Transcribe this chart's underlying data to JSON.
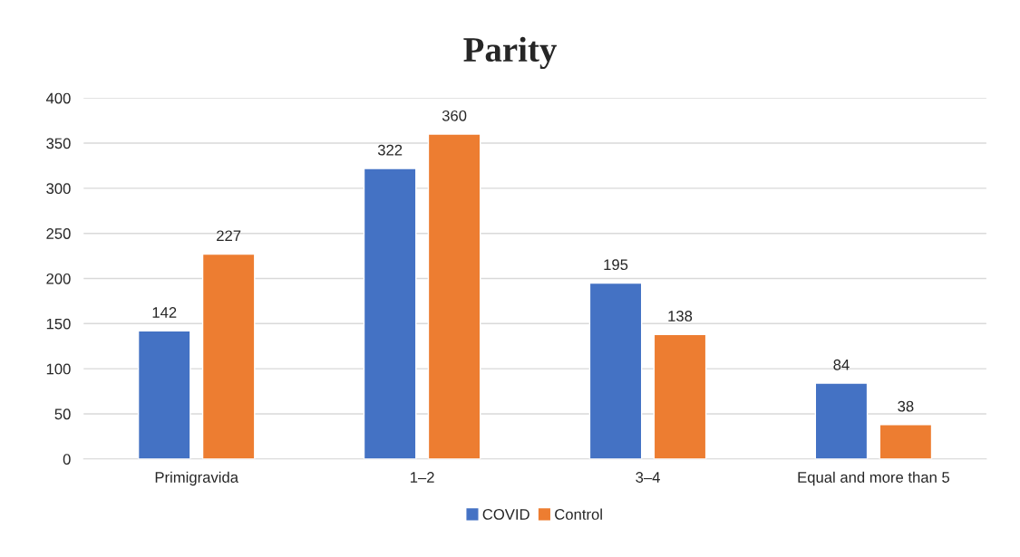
{
  "chart_data": {
    "type": "bar",
    "title": "Parity",
    "categories": [
      "Primigravida",
      "1–2",
      "3–4",
      "Equal and more than 5"
    ],
    "series": [
      {
        "name": "COVID",
        "color": "#4472c4",
        "values": [
          142,
          322,
          195,
          84
        ]
      },
      {
        "name": "Control",
        "color": "#ed7d31",
        "values": [
          227,
          360,
          138,
          38
        ]
      }
    ],
    "ylim": [
      0,
      400
    ],
    "yticks": [
      0,
      50,
      100,
      150,
      200,
      250,
      300,
      350,
      400
    ],
    "grid": "y",
    "legend": "bottom",
    "data_labels": true
  }
}
